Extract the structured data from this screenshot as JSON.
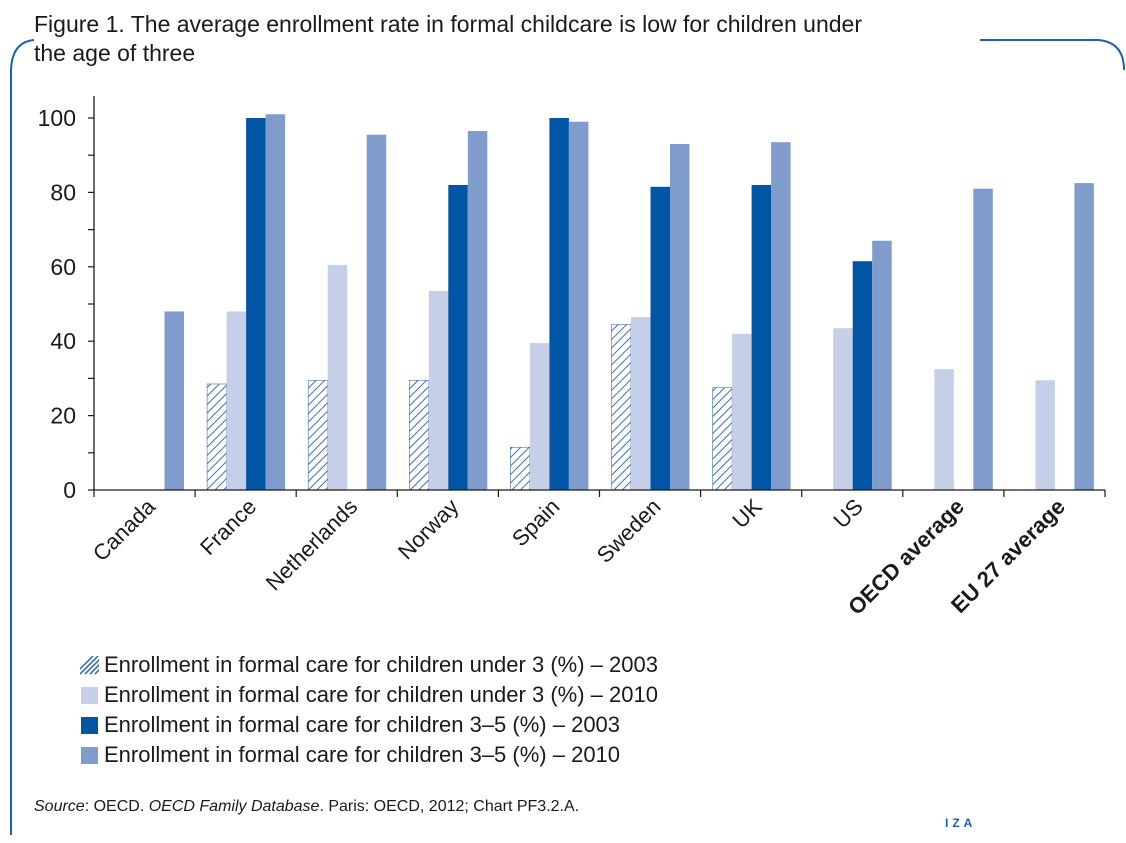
{
  "figure": {
    "title_line1": "Figure 1. The average enrollment rate in formal childcare is low for children under",
    "title_line2": "the age of three",
    "source_label": "Source",
    "source_sep": ": OECD. ",
    "source_italic": "OECD Family Database",
    "source_rest": ". Paris: OECD, 2012; Chart PF3.2.A.",
    "logo": "IZA"
  },
  "colors": {
    "frame": "#1f5fb0",
    "hatch": "#3d6fb5",
    "under3_2010": "#c5d0e8",
    "age3_5_2003": "#0055a5",
    "age3_5_2010": "#7f9ccd",
    "axis": "#1a1a1a"
  },
  "chart_data": {
    "type": "bar",
    "categories": [
      "Canada",
      "France",
      "Netherlands",
      "Norway",
      "Spain",
      "Sweden",
      "UK",
      "US",
      "OECD average",
      "EU 27 average"
    ],
    "bold_categories": [
      "OECD average",
      "EU 27 average"
    ],
    "ylim": [
      0,
      105
    ],
    "yticks": [
      0,
      20,
      40,
      60,
      80,
      100
    ],
    "series": [
      {
        "name": "Enrollment in formal care for children under 3 (%) – 2003",
        "key": "hatch",
        "values": [
          null,
          28.5,
          29.5,
          29.5,
          11.5,
          44.5,
          27.5,
          null,
          null,
          null
        ]
      },
      {
        "name": "Enrollment in formal care for children under 3 (%) – 2010",
        "key": "under3_2010",
        "values": [
          null,
          48,
          60.5,
          53.5,
          39.5,
          46.5,
          42,
          43.5,
          32.5,
          29.5
        ]
      },
      {
        "name": "Enrollment in formal care for children 3–5 (%) – 2003",
        "key": "age3_5_2003",
        "values": [
          null,
          100,
          null,
          82,
          100,
          81.5,
          82,
          61.5,
          null,
          null
        ]
      },
      {
        "name": "Enrollment in formal care for children 3–5 (%) – 2010",
        "key": "age3_5_2010",
        "values": [
          48,
          101,
          95.5,
          96.5,
          99,
          93,
          93.5,
          67,
          81,
          82.5
        ]
      }
    ]
  }
}
